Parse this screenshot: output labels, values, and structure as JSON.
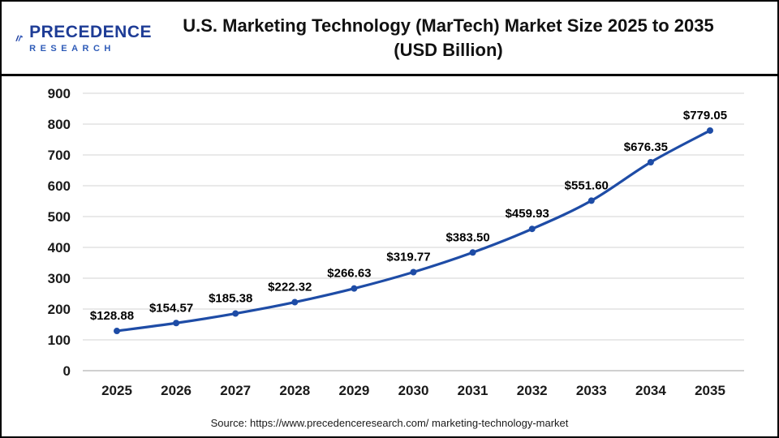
{
  "logo": {
    "line1": "PRECEDENCE",
    "line2": "RESEARCH"
  },
  "header": {
    "title_line1": "U.S. Marketing Technology (MarTech) Market Size 2025 to 2035",
    "title_line2": "(USD Billion)"
  },
  "footer": {
    "source": "Source: https://www.precedenceresearch.com/ marketing-technology-market"
  },
  "colors": {
    "line": "#1e4ca6",
    "point": "#1e4ca6",
    "grid": "#dcdcdc",
    "baseline": "#c0c0c0",
    "axis_text": "#1a1a1a",
    "data_label": "#000000",
    "logo_primary": "#24419c",
    "logo_secondary": "#3a66cc"
  },
  "chart_data": {
    "type": "line",
    "title": "U.S. Marketing Technology (MarTech) Market Size 2025 to 2035 (USD Billion)",
    "categories": [
      "2025",
      "2026",
      "2027",
      "2028",
      "2029",
      "2030",
      "2031",
      "2032",
      "2033",
      "2034",
      "2035"
    ],
    "values": [
      128.88,
      154.57,
      185.38,
      222.32,
      266.63,
      319.77,
      383.5,
      459.93,
      551.6,
      676.35,
      779.05
    ],
    "value_prefix": "$",
    "xlabel": "",
    "ylabel": "",
    "ylim": [
      0,
      900
    ],
    "ytick_step": 100,
    "grid": true,
    "legend": false
  }
}
